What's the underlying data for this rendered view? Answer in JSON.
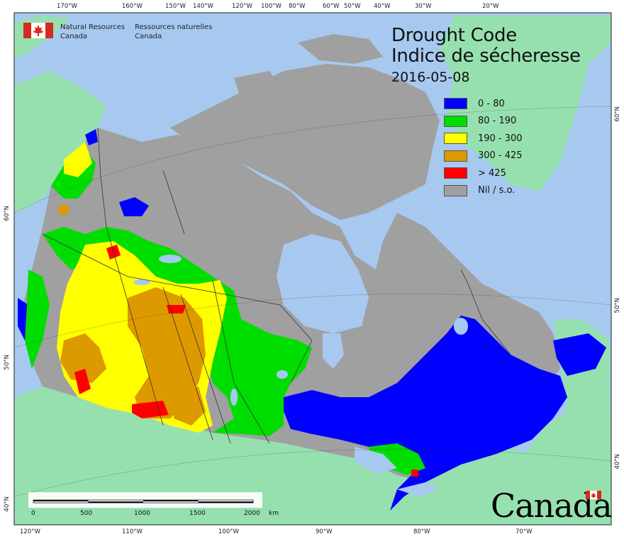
{
  "title": {
    "en": "Drought Code",
    "fr": "Indice de sécheresse",
    "date": "2016-05-08"
  },
  "legend": [
    {
      "label": "0 - 80",
      "color": "#0000ff"
    },
    {
      "label": "80 - 190",
      "color": "#00dd00"
    },
    {
      "label": "190 - 300",
      "color": "#ffff00"
    },
    {
      "label": "300 - 425",
      "color": "#dd9900"
    },
    {
      "label": "> 425",
      "color": "#ff0000"
    },
    {
      "label": "Nil / s.o.",
      "color": "#a0a0a0"
    }
  ],
  "agency": {
    "en_line1": "Natural Resources",
    "en_line2": "Canada",
    "fr_line1": "Ressources naturelles",
    "fr_line2": "Canada"
  },
  "wordmark": "Canada",
  "scale_bar": {
    "labels": [
      "0",
      "500",
      "1000",
      "1500",
      "2000"
    ],
    "unit": "km"
  },
  "graticule": {
    "top": [
      "170°W",
      "160°W",
      "150°W",
      "140°W",
      "120°W",
      "100°W",
      "80°W",
      "60°W",
      "50°W",
      "40°W",
      "30°W",
      "20°W"
    ],
    "bottom": [
      "120°W",
      "110°W",
      "100°W",
      "90°W",
      "80°W",
      "70°W"
    ],
    "left": [
      "60°N",
      "50°N",
      "40°N"
    ],
    "right": [
      "60°N",
      "50°N",
      "40°N"
    ]
  },
  "colors": {
    "water": "#a7c9f0",
    "land_outside": "#96e0b0",
    "nil": "#a0a0a0",
    "border": "#333333"
  }
}
